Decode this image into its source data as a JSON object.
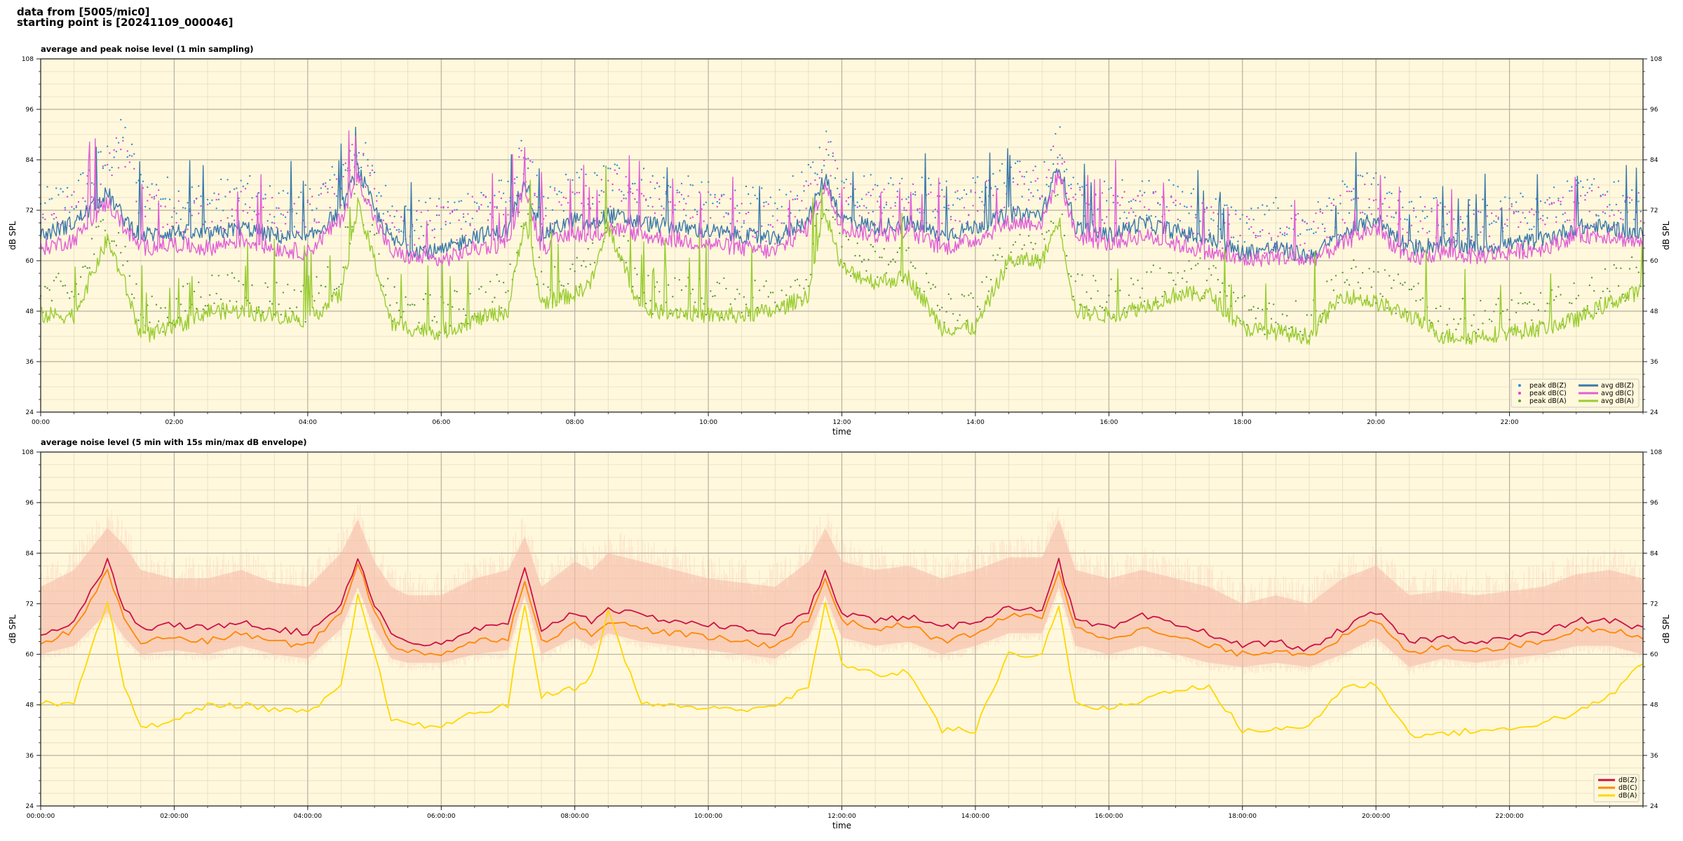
{
  "header": {
    "line1": "data from [5005/mic0]",
    "line2": "starting point is [20241109_000046]"
  },
  "chart_data": [
    {
      "type": "line",
      "title": "average and peak noise level (1 min sampling)",
      "xlabel": "time",
      "ylabel": "dB SPL",
      "ylabel_right": "dB SPL",
      "xlim": [
        "00:00",
        "24:00"
      ],
      "ylim": [
        24,
        108
      ],
      "yticks": [
        "24",
        "36",
        "48",
        "60",
        "72",
        "84",
        "96",
        "108"
      ],
      "xticks": [
        "00:00",
        "02:00",
        "04:00",
        "06:00",
        "08:00",
        "10:00",
        "12:00",
        "14:00",
        "16:00",
        "18:00",
        "20:00",
        "22:00"
      ],
      "grid": true,
      "legend_position": "bottom-right",
      "legend": [
        {
          "label": "peak dB(Z)",
          "marker": "dot",
          "color": "#2f8fd8"
        },
        {
          "label": "peak dB(C)",
          "marker": "dot",
          "color": "#e040e0"
        },
        {
          "label": "peak dB(A)",
          "marker": "dot",
          "color": "#5a9a3a"
        },
        {
          "label": "avg dB(Z)",
          "marker": "line",
          "color": "#3b78ab"
        },
        {
          "label": "avg dB(C)",
          "marker": "line",
          "color": "#e060d8"
        },
        {
          "label": "avg dB(A)",
          "marker": "line",
          "color": "#9acd32"
        }
      ],
      "x_hours": [
        0,
        0.5,
        1,
        1.25,
        1.5,
        2,
        2.5,
        3,
        3.5,
        4,
        4.5,
        4.75,
        5,
        5.25,
        5.5,
        6,
        6.5,
        7,
        7.25,
        7.5,
        8,
        8.25,
        8.5,
        9,
        9.5,
        10,
        10.5,
        11,
        11.5,
        11.75,
        12,
        12.5,
        13,
        13.5,
        14,
        14.5,
        15,
        15.25,
        15.5,
        16,
        16.5,
        17,
        17.5,
        18,
        18.5,
        19,
        19.5,
        20,
        20.5,
        21,
        21.5,
        22,
        22.5,
        23,
        23.5,
        24
      ],
      "series": [
        {
          "name": "avg dB(Z)",
          "color": "#3b78ab",
          "values": [
            66,
            69,
            76,
            70,
            66,
            67,
            66,
            68,
            66,
            65,
            72,
            82,
            72,
            65,
            63,
            62,
            66,
            67,
            80,
            66,
            70,
            68,
            71,
            69,
            68,
            67,
            66,
            65,
            70,
            80,
            70,
            68,
            69,
            66,
            68,
            71,
            71,
            83,
            68,
            66,
            69,
            67,
            65,
            62,
            63,
            61,
            66,
            70,
            63,
            64,
            63,
            64,
            65,
            68,
            68,
            66
          ]
        },
        {
          "name": "avg dB(C)",
          "color": "#e060d8",
          "values": [
            63,
            65,
            74,
            68,
            63,
            64,
            63,
            65,
            63,
            62,
            70,
            80,
            70,
            62,
            61,
            60,
            63,
            64,
            78,
            63,
            67,
            65,
            68,
            66,
            65,
            64,
            63,
            62,
            68,
            78,
            68,
            66,
            67,
            63,
            65,
            69,
            69,
            81,
            66,
            64,
            66,
            64,
            62,
            60,
            61,
            60,
            64,
            68,
            60,
            62,
            61,
            62,
            63,
            66,
            66,
            64
          ]
        },
        {
          "name": "avg dB(A)",
          "color": "#9acd32",
          "values": [
            47,
            47,
            65,
            55,
            42,
            44,
            48,
            48,
            47,
            46,
            52,
            73,
            60,
            45,
            44,
            43,
            46,
            48,
            70,
            50,
            52,
            55,
            68,
            48,
            48,
            47,
            47,
            48,
            52,
            72,
            58,
            55,
            56,
            44,
            44,
            60,
            60,
            70,
            48,
            47,
            49,
            52,
            52,
            44,
            43,
            42,
            52,
            50,
            47,
            42,
            42,
            43,
            44,
            46,
            50,
            53
          ]
        },
        {
          "name": "peak dB(Z)",
          "color": "#2f8fd8",
          "marker": "dot",
          "values": [
            72,
            75,
            84,
            90,
            77,
            75,
            74,
            76,
            73,
            73,
            80,
            88,
            78,
            72,
            70,
            70,
            74,
            75,
            86,
            72,
            78,
            76,
            80,
            78,
            76,
            74,
            73,
            72,
            78,
            88,
            78,
            76,
            77,
            74,
            76,
            79,
            79,
            88,
            76,
            74,
            76,
            74,
            72,
            68,
            70,
            68,
            74,
            77,
            70,
            71,
            70,
            71,
            72,
            75,
            76,
            74
          ]
        },
        {
          "name": "peak dB(C)",
          "color": "#e040e0",
          "marker": "dot",
          "values": [
            69,
            72,
            82,
            88,
            74,
            72,
            71,
            73,
            70,
            70,
            78,
            86,
            76,
            70,
            68,
            68,
            71,
            72,
            84,
            70,
            75,
            73,
            78,
            75,
            73,
            72,
            70,
            69,
            75,
            86,
            75,
            73,
            74,
            71,
            73,
            77,
            77,
            86,
            73,
            71,
            73,
            71,
            69,
            66,
            67,
            66,
            71,
            75,
            67,
            69,
            68,
            69,
            70,
            73,
            73,
            71
          ]
        },
        {
          "name": "peak dB(A)",
          "color": "#5a9a3a",
          "marker": "dot",
          "values": [
            52,
            52,
            70,
            62,
            46,
            48,
            53,
            52,
            51,
            50,
            58,
            78,
            64,
            49,
            48,
            47,
            50,
            53,
            74,
            54,
            56,
            59,
            72,
            52,
            52,
            51,
            51,
            52,
            56,
            76,
            62,
            59,
            60,
            48,
            48,
            64,
            64,
            74,
            52,
            51,
            53,
            56,
            56,
            48,
            47,
            46,
            56,
            54,
            51,
            46,
            46,
            47,
            48,
            50,
            54,
            57
          ]
        }
      ]
    },
    {
      "type": "line",
      "title": "average noise level (5 min with 15s min/max dB envelope)",
      "xlabel": "time",
      "ylabel": "dB SPL",
      "ylabel_right": "dB SPL",
      "xlim": [
        "00:00:00",
        "24:00:00"
      ],
      "ylim": [
        24,
        108
      ],
      "yticks": [
        "24",
        "36",
        "48",
        "60",
        "72",
        "84",
        "96",
        "108"
      ],
      "xticks": [
        "00:00:00",
        "02:00:00",
        "04:00:00",
        "06:00:00",
        "08:00:00",
        "10:00:00",
        "12:00:00",
        "14:00:00",
        "16:00:00",
        "18:00:00",
        "20:00:00",
        "22:00:00"
      ],
      "grid": true,
      "legend_position": "bottom-right",
      "legend": [
        {
          "label": "dB(Z)",
          "marker": "line",
          "color": "#cc1144"
        },
        {
          "label": "dB(C)",
          "marker": "line",
          "color": "#ff8800"
        },
        {
          "label": "dB(A)",
          "marker": "line",
          "color": "#ffd700"
        }
      ],
      "envelope_color": "#f5b9a8",
      "x_hours": [
        0,
        0.5,
        1,
        1.25,
        1.5,
        2,
        2.5,
        3,
        3.5,
        4,
        4.5,
        4.75,
        5,
        5.25,
        5.5,
        6,
        6.5,
        7,
        7.25,
        7.5,
        8,
        8.25,
        8.5,
        9,
        9.5,
        10,
        10.5,
        11,
        11.5,
        11.75,
        12,
        12.5,
        13,
        13.5,
        14,
        14.5,
        15,
        15.25,
        15.5,
        16,
        16.5,
        17,
        17.5,
        18,
        18.5,
        19,
        19.5,
        20,
        20.5,
        21,
        21.5,
        22,
        22.5,
        23,
        23.5,
        24
      ],
      "envelope_max": [
        76,
        80,
        90,
        86,
        80,
        78,
        78,
        80,
        77,
        76,
        84,
        92,
        82,
        76,
        74,
        74,
        78,
        80,
        88,
        76,
        82,
        80,
        84,
        82,
        80,
        78,
        77,
        76,
        82,
        90,
        82,
        80,
        81,
        78,
        80,
        83,
        83,
        92,
        80,
        78,
        80,
        78,
        76,
        72,
        74,
        72,
        78,
        81,
        74,
        75,
        74,
        75,
        76,
        79,
        80,
        78
      ],
      "envelope_min": [
        60,
        62,
        70,
        64,
        60,
        61,
        60,
        62,
        60,
        59,
        66,
        76,
        66,
        59,
        58,
        58,
        60,
        61,
        74,
        60,
        64,
        62,
        65,
        63,
        62,
        61,
        60,
        59,
        64,
        74,
        64,
        62,
        63,
        60,
        62,
        65,
        65,
        76,
        62,
        60,
        62,
        60,
        58,
        57,
        58,
        57,
        60,
        64,
        57,
        59,
        58,
        59,
        60,
        62,
        62,
        60
      ],
      "series": [
        {
          "name": "dB(Z)",
          "color": "#cc1144",
          "values": [
            64,
            68,
            82,
            71,
            66,
            67,
            66,
            68,
            66,
            65,
            72,
            83,
            72,
            65,
            63,
            62,
            66,
            67,
            80,
            66,
            70,
            68,
            71,
            69,
            68,
            67,
            66,
            65,
            70,
            80,
            70,
            68,
            69,
            66,
            68,
            71,
            71,
            82,
            68,
            66,
            69,
            67,
            65,
            62,
            63,
            61,
            66,
            70,
            63,
            64,
            63,
            64,
            65,
            68,
            68,
            66
          ]
        },
        {
          "name": "dB(C)",
          "color": "#ff8800",
          "values": [
            62,
            66,
            80,
            68,
            63,
            64,
            63,
            65,
            63,
            62,
            70,
            82,
            70,
            62,
            61,
            60,
            63,
            64,
            78,
            63,
            67,
            65,
            68,
            66,
            65,
            64,
            63,
            62,
            68,
            78,
            68,
            66,
            67,
            63,
            65,
            69,
            69,
            80,
            66,
            64,
            66,
            64,
            62,
            60,
            61,
            60,
            64,
            68,
            60,
            62,
            61,
            62,
            63,
            66,
            66,
            64
          ]
        },
        {
          "name": "dB(A)",
          "color": "#ffd700",
          "values": [
            48,
            49,
            73,
            52,
            43,
            44,
            48,
            48,
            47,
            46,
            52,
            74,
            60,
            45,
            43,
            43,
            46,
            48,
            72,
            50,
            52,
            55,
            70,
            48,
            48,
            47,
            47,
            48,
            52,
            72,
            58,
            55,
            56,
            42,
            42,
            60,
            60,
            72,
            48,
            47,
            49,
            52,
            52,
            42,
            42,
            43,
            52,
            53,
            41,
            41,
            42,
            42,
            44,
            46,
            50,
            58
          ]
        }
      ]
    }
  ]
}
